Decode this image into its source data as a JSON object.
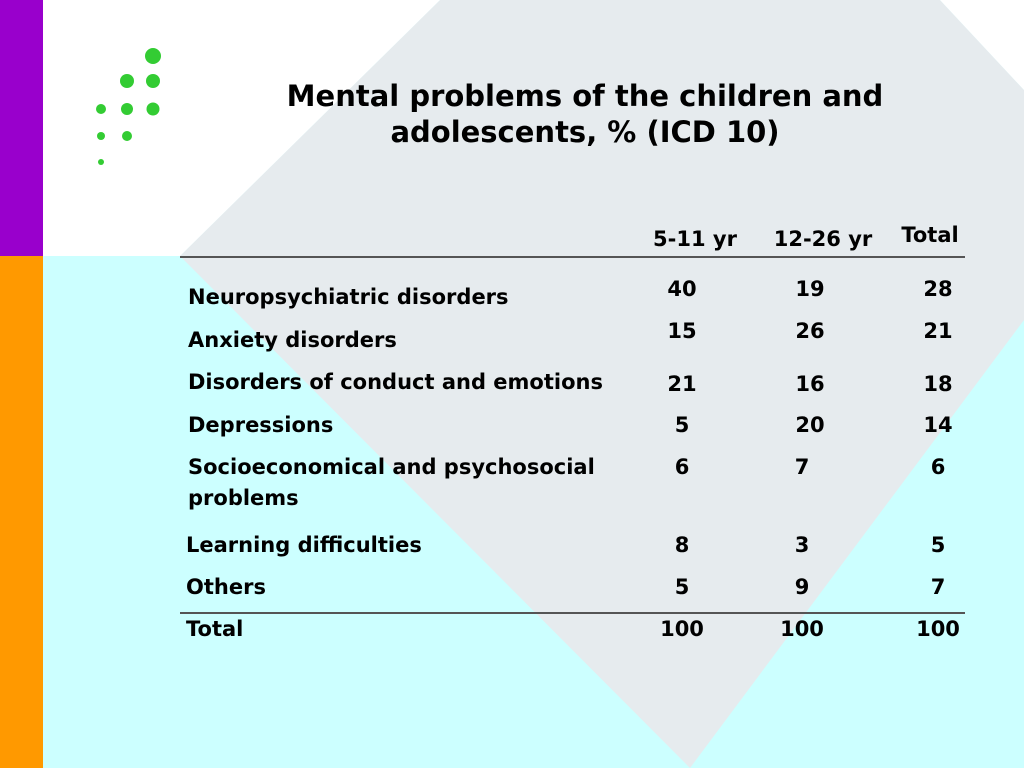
{
  "slide": {
    "title_line1": "Mental problems of the children and",
    "title_line2": "adolescents, % (ICD 10)",
    "colors": {
      "accent_top": "#9900CC",
      "accent_bottom": "#FF9900",
      "background": "#CCFFFF",
      "diamond": "#E6EBEE",
      "dots": "#33CC33"
    }
  },
  "table": {
    "headers": [
      "5-11 yr",
      "12-26 yr",
      "Total"
    ],
    "rows": [
      {
        "label": "Neuropsychiatric disorders",
        "values": [
          "40",
          "19",
          "28"
        ]
      },
      {
        "label": "Anxiety disorders",
        "values": [
          "15",
          "26",
          "21"
        ]
      },
      {
        "label": "Disorders of conduct and emotions",
        "values": [
          "21",
          "16",
          "18"
        ]
      },
      {
        "label": "Depressions",
        "values": [
          "5",
          "20",
          "14"
        ]
      },
      {
        "label": "Socioeconomical and psychosocial problems",
        "values": [
          "6",
          "7",
          "6"
        ]
      },
      {
        "label": "Learning difficulties",
        "values": [
          "8",
          "3",
          "5"
        ]
      },
      {
        "label": "Others",
        "values": [
          "5",
          "9",
          "7"
        ]
      }
    ],
    "total": {
      "label": "Total",
      "values": [
        "100",
        "100",
        "100"
      ]
    }
  }
}
